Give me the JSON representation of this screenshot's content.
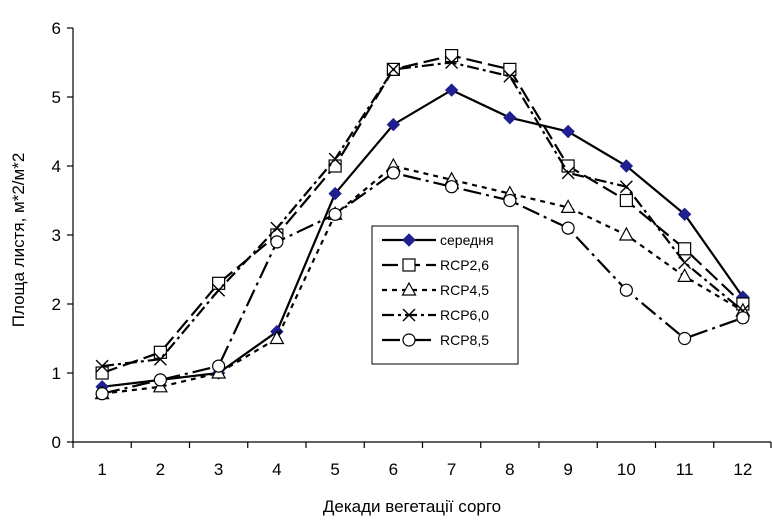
{
  "chart_data": {
    "type": "line",
    "title": "",
    "xlabel": "Декади вегетації сорго",
    "ylabel": "Площа листя, м*2/м*2",
    "x": [
      1,
      2,
      3,
      4,
      5,
      6,
      7,
      8,
      9,
      10,
      11,
      12
    ],
    "x_tick_labels": [
      "1",
      "2",
      "3",
      "4",
      "5",
      "6",
      "7",
      "8",
      "9",
      "10",
      "11",
      "12"
    ],
    "ylim": [
      0,
      6
    ],
    "y_ticks": [
      0,
      1,
      2,
      3,
      4,
      5,
      6
    ],
    "y_tick_labels": [
      "0",
      "1",
      "2",
      "3",
      "4",
      "5",
      "6"
    ],
    "grid": false,
    "legend_position": "center",
    "series": [
      {
        "name": "середня",
        "marker": "diamond-filled",
        "dash": "solid",
        "color": "#000000",
        "marker_color": "#1f1f8f",
        "values": [
          0.8,
          0.9,
          1.0,
          1.6,
          3.6,
          4.6,
          5.1,
          4.7,
          4.5,
          4.0,
          3.3,
          2.1
        ]
      },
      {
        "name": "RCP2,6",
        "marker": "square-open",
        "dash": "long-dash",
        "color": "#000000",
        "values": [
          1.0,
          1.3,
          2.3,
          3.0,
          4.0,
          5.4,
          5.6,
          5.4,
          4.0,
          3.5,
          2.8,
          2.0
        ]
      },
      {
        "name": "RCP4,5",
        "marker": "triangle-open",
        "dash": "short-dash",
        "color": "#000000",
        "values": [
          0.7,
          0.8,
          1.0,
          1.5,
          3.3,
          4.0,
          3.8,
          3.6,
          3.4,
          3.0,
          2.4,
          1.9
        ]
      },
      {
        "name": "RCP6,0",
        "marker": "x",
        "dash": "dash-dot",
        "color": "#000000",
        "values": [
          1.1,
          1.2,
          2.2,
          3.1,
          4.1,
          5.4,
          5.5,
          5.3,
          3.9,
          3.7,
          2.6,
          1.9
        ]
      },
      {
        "name": "RCP8,5",
        "marker": "circle-open",
        "dash": "long-dash-dot",
        "color": "#000000",
        "values": [
          0.7,
          0.9,
          1.1,
          2.9,
          3.3,
          3.9,
          3.7,
          3.5,
          3.1,
          2.2,
          1.5,
          1.8
        ]
      }
    ]
  }
}
